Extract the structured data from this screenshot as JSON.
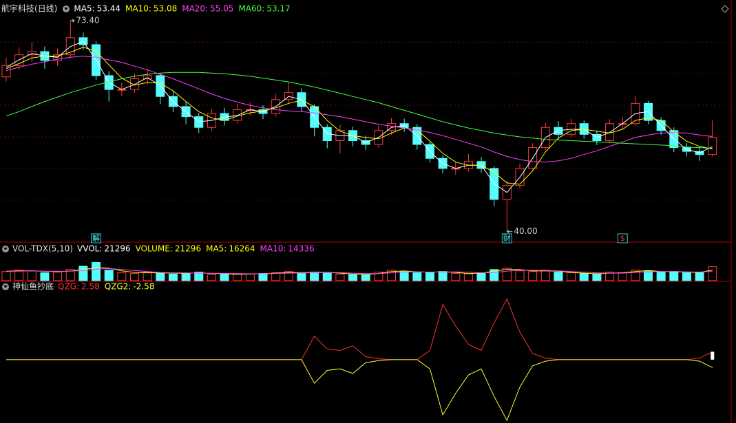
{
  "chart_data": [
    {
      "type": "candlestick",
      "title": "航宇科技(日线)",
      "open": [
        64.5,
        66.3,
        68.0,
        68.5,
        67.1,
        68.0,
        70.7,
        69.6,
        64.7,
        62.5,
        62.5,
        64.2,
        64.7,
        61.4,
        59.8,
        58.2,
        56.5,
        58.7,
        57.6,
        59.3,
        59.3,
        58.7,
        60.9,
        62.0,
        59.8,
        56.5,
        54.4,
        56.0,
        54.4,
        53.8,
        56.0,
        57.1,
        56.5,
        53.8,
        51.6,
        50.0,
        50.0,
        51.1,
        50.0,
        45.1,
        47.3,
        50.0,
        53.3,
        56.5,
        55.4,
        57.1,
        55.4,
        54.4,
        57.1,
        57.1,
        60.3,
        57.6,
        56.0,
        53.3,
        52.7,
        52.2
      ],
      "high": [
        67.5,
        69.2,
        70.0,
        69.3,
        69.0,
        73.4,
        71.5,
        70.1,
        65.4,
        63.6,
        65.0,
        65.8,
        65.1,
        62.3,
        60.5,
        58.8,
        59.4,
        59.6,
        60.2,
        60.4,
        60.0,
        61.8,
        63.6,
        62.7,
        60.2,
        57.0,
        56.9,
        56.6,
        55.2,
        56.8,
        58.0,
        57.9,
        57.0,
        54.3,
        52.1,
        51.0,
        52.3,
        51.8,
        50.4,
        48.1,
        50.8,
        54.0,
        57.2,
        57.5,
        57.9,
        57.6,
        56.0,
        57.8,
        58.2,
        61.5,
        60.7,
        58.1,
        56.5,
        54.0,
        53.4,
        57.6
      ],
      "low": [
        63.8,
        65.6,
        66.9,
        65.8,
        66.2,
        67.5,
        68.8,
        64.0,
        60.6,
        61.5,
        62.0,
        63.3,
        60.2,
        58.9,
        57.0,
        55.6,
        56.0,
        56.8,
        57.1,
        58.4,
        57.8,
        58.2,
        60.4,
        59.0,
        55.1,
        53.2,
        52.4,
        53.5,
        52.9,
        53.3,
        55.4,
        55.8,
        53.0,
        50.9,
        49.2,
        49.0,
        49.5,
        49.3,
        44.0,
        40.0,
        46.8,
        49.6,
        52.8,
        54.6,
        54.9,
        54.7,
        53.7,
        54.0,
        56.2,
        56.8,
        57.0,
        55.3,
        52.6,
        51.9,
        51.2,
        51.9
      ],
      "close": [
        66.3,
        68.0,
        68.5,
        67.1,
        68.0,
        70.7,
        69.6,
        64.7,
        62.5,
        62.5,
        64.2,
        64.7,
        61.4,
        59.8,
        58.2,
        56.5,
        58.7,
        57.6,
        59.3,
        59.3,
        58.7,
        60.9,
        62.0,
        59.8,
        56.5,
        54.4,
        56.0,
        54.4,
        53.8,
        56.0,
        57.1,
        56.5,
        53.8,
        51.6,
        50.0,
        50.0,
        51.1,
        50.0,
        45.1,
        47.3,
        50.0,
        53.3,
        56.5,
        55.4,
        57.1,
        55.4,
        54.4,
        57.1,
        57.1,
        60.3,
        57.6,
        56.0,
        53.3,
        52.7,
        52.2,
        54.9
      ],
      "high_labels": [
        null,
        null,
        null,
        null,
        null,
        "73.40",
        null,
        null,
        null,
        null,
        null,
        null,
        null,
        null,
        null,
        null,
        null,
        null,
        null,
        null,
        null,
        null,
        null,
        null,
        null,
        null,
        null,
        null,
        null,
        null,
        null,
        null,
        null,
        null,
        null,
        null,
        null,
        null,
        null,
        null,
        null,
        null,
        null,
        null,
        null,
        null,
        null,
        null,
        null,
        null,
        null,
        null,
        null,
        null,
        null,
        null
      ],
      "low_labels": [
        null,
        null,
        null,
        null,
        null,
        null,
        null,
        null,
        null,
        null,
        null,
        null,
        null,
        null,
        null,
        null,
        null,
        null,
        null,
        null,
        null,
        null,
        null,
        null,
        null,
        null,
        null,
        null,
        null,
        null,
        null,
        null,
        null,
        null,
        null,
        null,
        null,
        null,
        null,
        "40.00",
        null,
        null,
        null,
        null,
        null,
        null,
        null,
        null,
        null,
        null,
        null,
        null,
        null,
        null,
        null,
        null
      ],
      "events": [
        null,
        null,
        null,
        null,
        null,
        null,
        null,
        "解",
        null,
        null,
        null,
        null,
        null,
        null,
        null,
        null,
        null,
        null,
        null,
        null,
        null,
        null,
        null,
        null,
        null,
        null,
        null,
        null,
        null,
        null,
        null,
        null,
        null,
        null,
        null,
        null,
        null,
        null,
        null,
        "财",
        null,
        null,
        null,
        null,
        null,
        null,
        null,
        null,
        "$",
        null,
        null,
        null,
        null,
        null,
        null,
        null
      ],
      "up_color": "#ff3c3c",
      "down_color": "#54fcfc",
      "ylim": [
        39.1,
        75.8
      ],
      "yticks": [
        45,
        50,
        55,
        60,
        65,
        70
      ],
      "grid": true,
      "series": [
        {
          "name": "MA5:",
          "color": "#ffffff",
          "values": [
            66.0,
            67.2,
            68.2,
            67.8,
            67.6,
            69.3,
            70.1,
            67.2,
            63.6,
            62.5,
            63.3,
            64.4,
            63.1,
            60.6,
            59.0,
            57.4,
            57.6,
            58.1,
            58.4,
            59.3,
            59.0,
            59.8,
            61.4,
            60.9,
            58.2,
            55.5,
            55.2,
            55.2,
            54.1,
            54.9,
            56.5,
            56.8,
            55.2,
            52.7,
            50.8,
            50.0,
            50.5,
            50.5,
            47.6,
            46.2,
            48.6,
            51.6,
            54.9,
            56.0,
            56.2,
            56.2,
            54.9,
            55.7,
            57.1,
            58.7,
            59.0,
            56.8,
            54.7,
            53.0,
            52.5,
            53.44
          ]
        },
        {
          "name": "MA10:",
          "color": "#ffff00",
          "values": [
            65.8,
            66.6,
            67.5,
            67.8,
            67.8,
            68.4,
            69.2,
            68.6,
            66.4,
            64.3,
            63.2,
            63.6,
            63.5,
            62.3,
            60.6,
            59.0,
            58.0,
            57.6,
            58.3,
            58.8,
            59.1,
            59.6,
            60.3,
            60.8,
            59.8,
            57.6,
            55.9,
            55.2,
            54.9,
            54.7,
            55.6,
            56.4,
            56.1,
            54.3,
            52.4,
            51.0,
            50.5,
            50.5,
            49.4,
            47.7,
            47.5,
            49.6,
            52.6,
            54.8,
            56.0,
            56.2,
            55.9,
            55.6,
            56.2,
            57.6,
            58.0,
            57.6,
            55.8,
            54.3,
            53.5,
            53.08
          ]
        },
        {
          "name": "MA20:",
          "color": "#ff40ff",
          "values": [
            65.5,
            66.0,
            66.5,
            66.9,
            67.3,
            67.6,
            67.8,
            67.6,
            67.2,
            66.8,
            66.2,
            65.6,
            64.9,
            64.2,
            63.4,
            62.6,
            61.8,
            61.1,
            60.5,
            60.0,
            59.6,
            59.3,
            59.1,
            59.0,
            58.8,
            58.5,
            58.2,
            57.8,
            57.4,
            57.0,
            56.7,
            56.4,
            56.1,
            55.7,
            55.2,
            54.6,
            54.0,
            53.4,
            52.6,
            51.9,
            51.4,
            51.1,
            51.0,
            51.2,
            51.6,
            52.2,
            52.8,
            53.5,
            54.2,
            54.9,
            55.3,
            55.6,
            55.7,
            55.6,
            55.3,
            55.05
          ]
        },
        {
          "name": "MA60:",
          "color": "#40ff40",
          "values": [
            58.3,
            59.0,
            59.8,
            60.6,
            61.3,
            62.0,
            62.6,
            63.2,
            63.7,
            64.2,
            64.6,
            64.9,
            65.1,
            65.2,
            65.2,
            65.2,
            65.1,
            65.0,
            64.8,
            64.6,
            64.3,
            64.0,
            63.7,
            63.3,
            62.9,
            62.4,
            61.9,
            61.4,
            60.9,
            60.4,
            59.8,
            59.2,
            58.6,
            58.0,
            57.4,
            56.9,
            56.4,
            56.0,
            55.6,
            55.3,
            55.0,
            54.8,
            54.6,
            54.5,
            54.4,
            54.3,
            54.2,
            54.1,
            54.0,
            53.9,
            53.8,
            53.7,
            53.6,
            53.4,
            53.3,
            53.17
          ]
        }
      ]
    },
    {
      "type": "bar",
      "title": "VOL-TDX(5,10)",
      "value_names": [
        "VVOL:",
        "VOLUME:"
      ],
      "value_colors": [
        "#ffffff",
        "#ffff00"
      ],
      "ylim": [
        0,
        40000
      ],
      "values": [
        14000,
        16000,
        15000,
        12000,
        13000,
        17000,
        22000,
        28000,
        16000,
        12000,
        11000,
        13000,
        12000,
        10000,
        11000,
        13000,
        9000,
        10000,
        9500,
        10500,
        11000,
        12000,
        14000,
        11000,
        13000,
        12500,
        10000,
        9000,
        9500,
        13000,
        16000,
        14000,
        12000,
        13000,
        14000,
        11000,
        10500,
        12000,
        17000,
        19000,
        15000,
        14000,
        16000,
        13000,
        12000,
        11000,
        10000,
        13000,
        12000,
        16000,
        15000,
        13000,
        14000,
        12000,
        12500,
        21296
      ],
      "series": [
        {
          "name": "MA5:",
          "color": "#ffff00",
          "values": [
            14500,
            15000,
            15000,
            14200,
            14000,
            14600,
            16800,
            20000,
            19000,
            15000,
            12500,
            12000,
            12000,
            11500,
            11200,
            12000,
            11000,
            10600,
            9800,
            10000,
            10800,
            11500,
            12500,
            12200,
            12500,
            12600,
            11500,
            10000,
            9300,
            11000,
            14000,
            14800,
            13500,
            13000,
            13500,
            12500,
            11000,
            11500,
            14500,
            17500,
            17000,
            14800,
            15000,
            14500,
            12500,
            11500,
            10500,
            11500,
            12000,
            14000,
            15500,
            14000,
            13500,
            13000,
            12500,
            16264
          ]
        },
        {
          "name": "MA10:",
          "color": "#ff40ff",
          "values": [
            14000,
            14500,
            14800,
            14500,
            14300,
            14400,
            15500,
            17500,
            18500,
            17000,
            15500,
            14000,
            12500,
            12000,
            11800,
            11500,
            11400,
            11200,
            10800,
            10500,
            10500,
            11000,
            11500,
            11800,
            12000,
            12300,
            12200,
            11500,
            10800,
            10700,
            12000,
            13500,
            13500,
            13000,
            13200,
            13400,
            12800,
            12000,
            12500,
            14500,
            16000,
            15800,
            15500,
            15000,
            14000,
            13000,
            12000,
            11500,
            11500,
            12500,
            13500,
            14000,
            14000,
            13500,
            13000,
            14336
          ]
        }
      ]
    },
    {
      "type": "line",
      "title": "神仙鱼抄底",
      "ylim": [
        -20,
        21.3
      ],
      "series": [
        {
          "name": "QZG:",
          "color": "#ff3030",
          "values": [
            0,
            0,
            0,
            0,
            0,
            0,
            0,
            0,
            0,
            0,
            0,
            0,
            0,
            0,
            0,
            0,
            0,
            0,
            0,
            0,
            0,
            0,
            0,
            0,
            7.7,
            3.5,
            3.0,
            4.5,
            1.0,
            0.3,
            0,
            0,
            0,
            3,
            18,
            11,
            5,
            3,
            12,
            19.8,
            9,
            2,
            0.5,
            0,
            0,
            0,
            0,
            0,
            0,
            0,
            0,
            0,
            0,
            0,
            0.5,
            2.58
          ]
        },
        {
          "name": "QZG2:",
          "color": "#ffff30",
          "values": [
            0,
            0,
            0,
            0,
            0,
            0,
            0,
            0,
            0,
            0,
            0,
            0,
            0,
            0,
            0,
            0,
            0,
            0,
            0,
            0,
            0,
            0,
            0,
            0,
            -7.7,
            -3.5,
            -3.0,
            -4.5,
            -1.0,
            -0.3,
            0,
            0,
            0,
            -3,
            -18,
            -11,
            -5,
            -3,
            -12,
            -19.8,
            -9,
            -2,
            -0.5,
            0,
            0,
            0,
            0,
            0,
            0,
            0,
            0,
            0,
            0,
            0,
            -0.5,
            -2.58
          ]
        }
      ]
    }
  ]
}
